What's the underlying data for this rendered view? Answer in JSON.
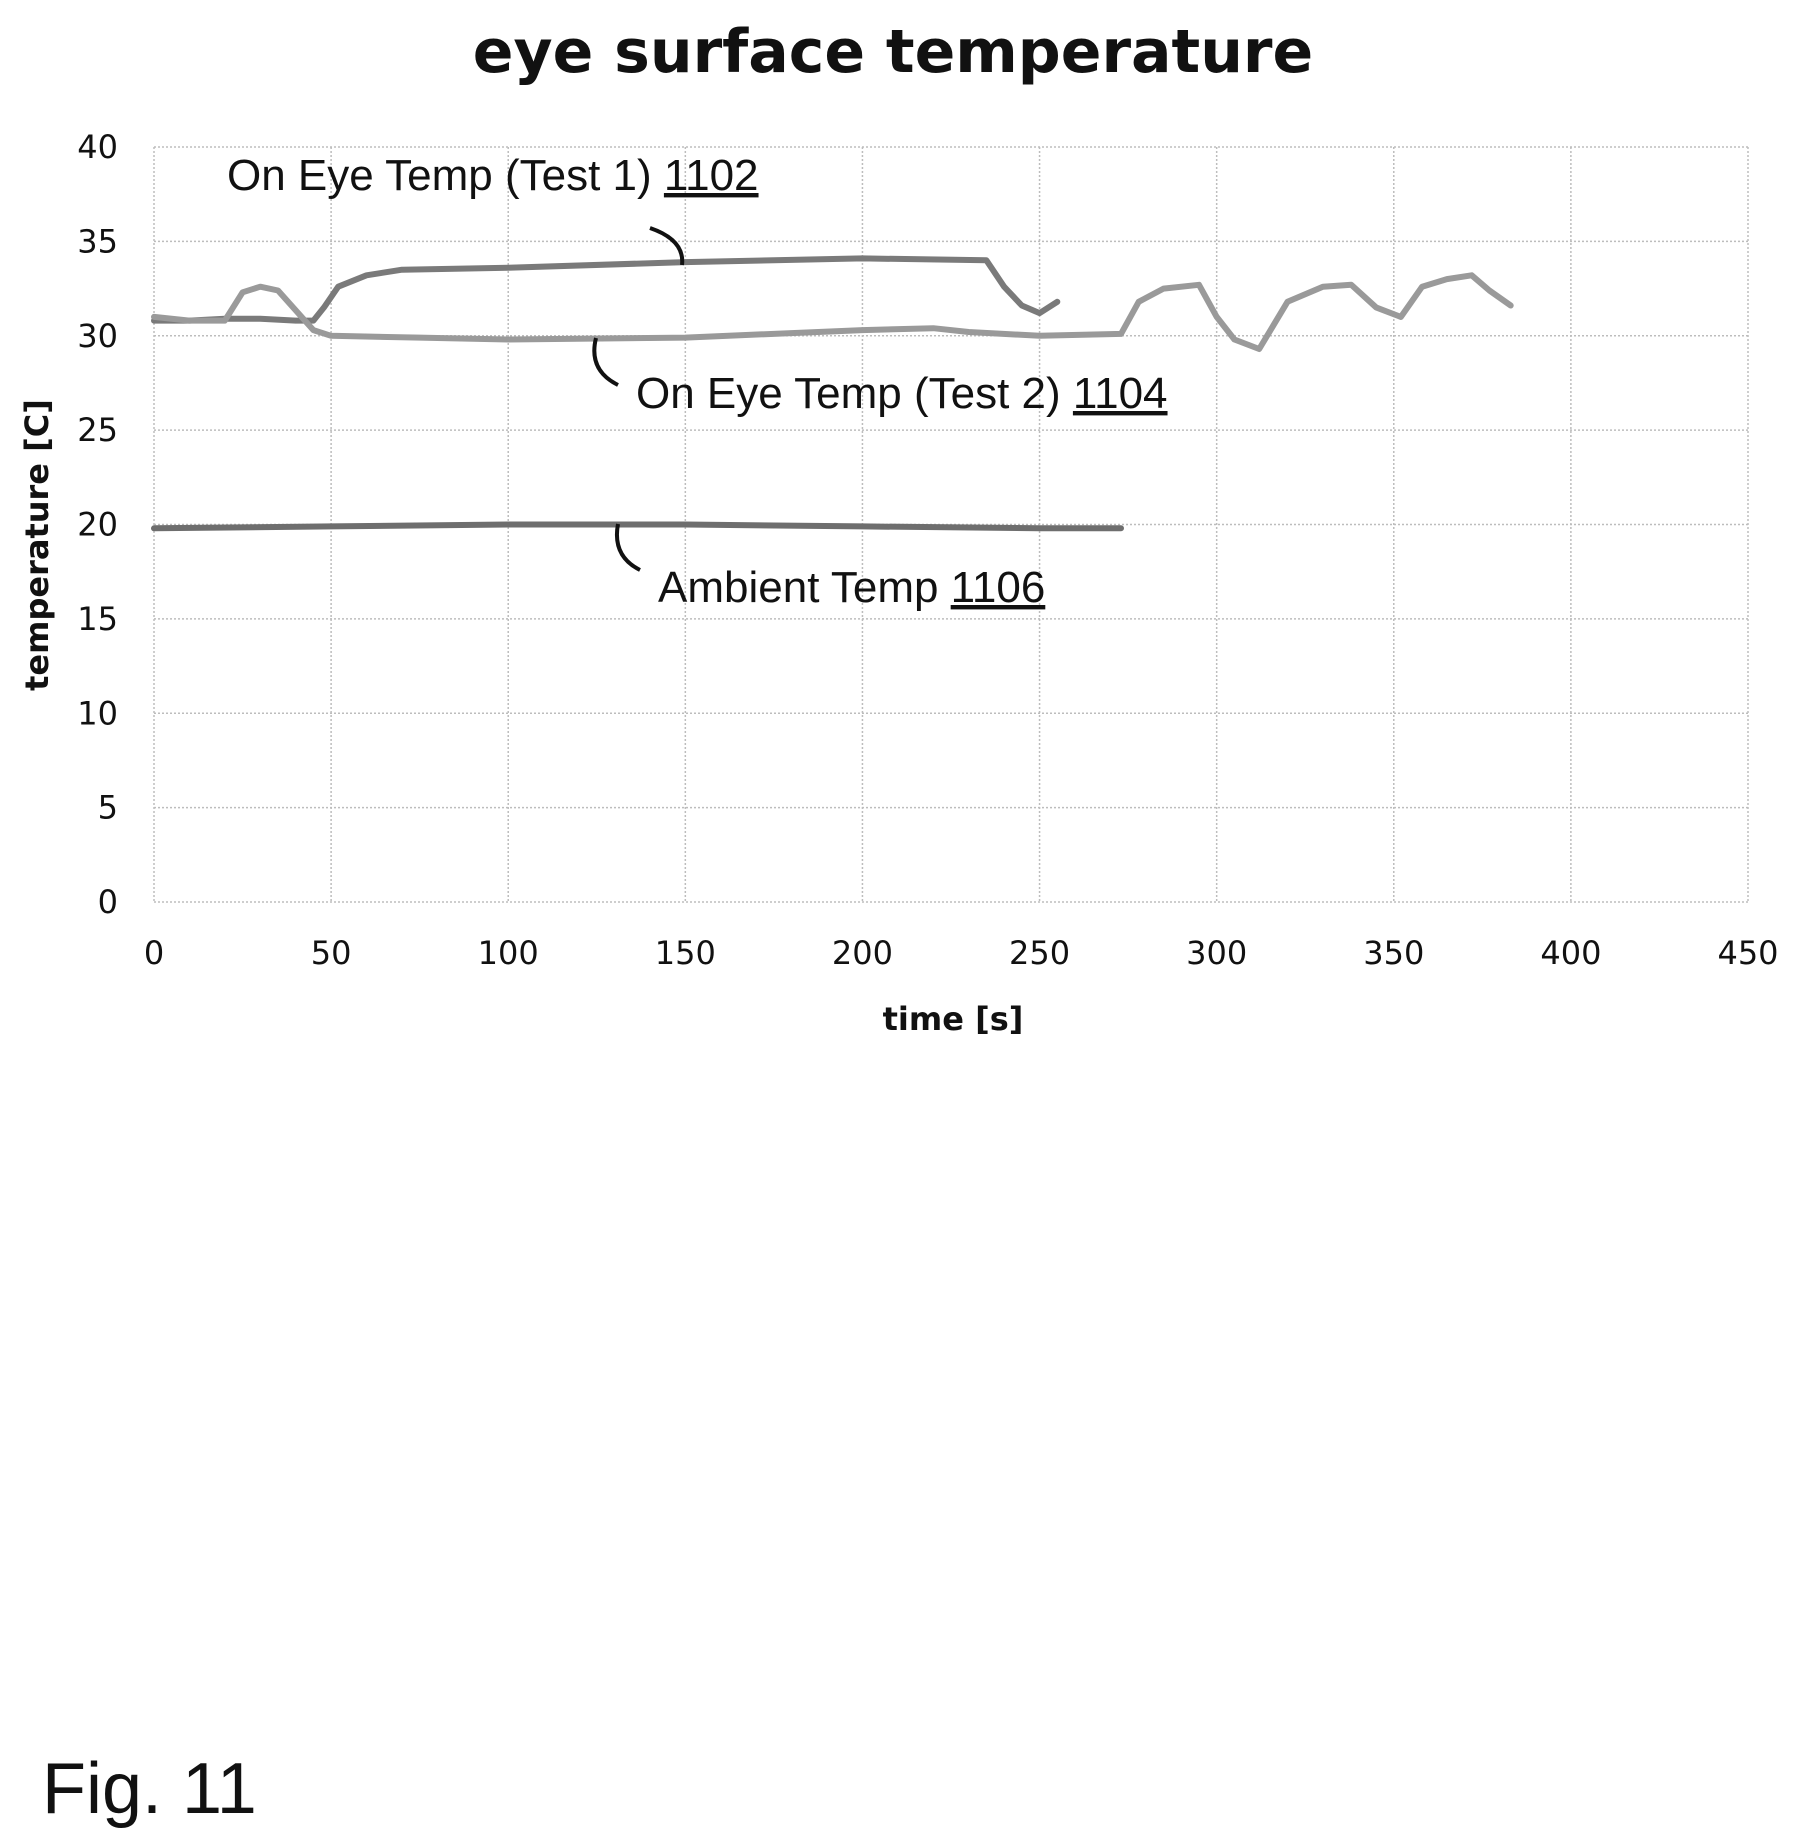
{
  "chart_data": {
    "type": "line",
    "title": "eye surface temperature",
    "xlabel": "time [s]",
    "ylabel": "temperature [C]",
    "xlim": [
      0,
      450
    ],
    "ylim": [
      0,
      40
    ],
    "xticks": [
      0,
      50,
      100,
      150,
      200,
      250,
      300,
      350,
      400,
      450
    ],
    "yticks": [
      0,
      5,
      10,
      15,
      20,
      25,
      30,
      35,
      40
    ],
    "grid": true,
    "legend": "none",
    "series": [
      {
        "name": "On Eye Temp (Test 1)",
        "ref": "1102",
        "color": "#7a7a7a",
        "x": [
          0,
          10,
          20,
          30,
          40,
          45,
          48,
          52,
          60,
          70,
          100,
          150,
          200,
          235,
          240,
          245,
          250,
          255
        ],
        "y": [
          30.8,
          30.8,
          30.9,
          30.9,
          30.8,
          30.8,
          31.5,
          32.6,
          33.2,
          33.5,
          33.6,
          33.9,
          34.1,
          34.0,
          32.6,
          31.6,
          31.2,
          31.8
        ]
      },
      {
        "name": "On Eye Temp (Test 2)",
        "ref": "1104",
        "color": "#9a9a9a",
        "x": [
          0,
          10,
          20,
          25,
          30,
          35,
          45,
          50,
          75,
          100,
          150,
          200,
          220,
          230,
          250,
          273,
          278,
          285,
          295,
          300,
          305,
          312,
          320,
          330,
          338,
          345,
          352,
          358,
          365,
          372,
          377,
          383
        ],
        "y": [
          31.0,
          30.8,
          30.8,
          32.3,
          32.6,
          32.4,
          30.3,
          30.0,
          29.9,
          29.8,
          29.9,
          30.3,
          30.4,
          30.2,
          30.0,
          30.1,
          31.8,
          32.5,
          32.7,
          31.0,
          29.8,
          29.3,
          31.8,
          32.6,
          32.7,
          31.5,
          31.0,
          32.6,
          33.0,
          33.2,
          32.4,
          31.6
        ]
      },
      {
        "name": "Ambient Temp",
        "ref": "1106",
        "color": "#6e6e6e",
        "x": [
          0,
          50,
          100,
          150,
          200,
          250,
          273
        ],
        "y": [
          19.8,
          19.9,
          20.0,
          20.0,
          19.9,
          19.8,
          19.8
        ]
      }
    ],
    "annotations": [
      {
        "text": "On Eye Temp (Test 1) ",
        "ref": "1102"
      },
      {
        "text": "On Eye Temp (Test 2) ",
        "ref": "1104"
      },
      {
        "text": "Ambient Temp ",
        "ref": "1106"
      }
    ]
  },
  "figure_label": "Fig. 11"
}
